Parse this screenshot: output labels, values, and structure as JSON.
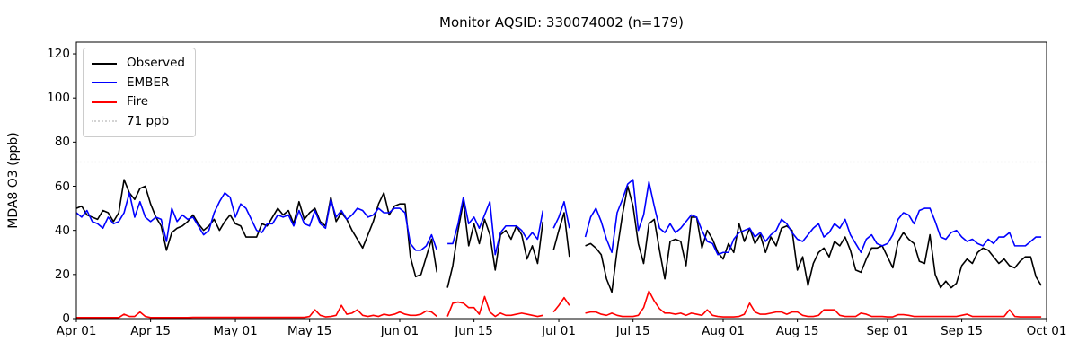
{
  "title": "Monitor AQSID: 330074002 (n=179)",
  "ylabel": "MDA8 O3 (ppb)",
  "legend": {
    "items": [
      {
        "label": "Observed",
        "color": "#000000",
        "dash": "solid"
      },
      {
        "label": "EMBER",
        "color": "#0000ff",
        "dash": "solid"
      },
      {
        "label": "Fire",
        "color": "#ff0000",
        "dash": "solid"
      },
      {
        "label": "71 ppb",
        "color": "#d3d3d3",
        "dash": "dotted"
      }
    ]
  },
  "chart_data": {
    "type": "line",
    "x_unit": "days since Apr 01",
    "xlim": [
      0,
      183
    ],
    "ylim": [
      0,
      125.3
    ],
    "grid": false,
    "legend_position": "upper left",
    "xtick_days": [
      0,
      14,
      30,
      44,
      61,
      75,
      91,
      105,
      122,
      136,
      153,
      167,
      183
    ],
    "xtick_labels": [
      "Apr 01",
      "Apr 15",
      "May 01",
      "May 15",
      "Jun 01",
      "Jun 15",
      "Jul 01",
      "Jul 15",
      "Aug 01",
      "Aug 15",
      "Sep 01",
      "Sep 15",
      "Oct 01"
    ],
    "yticks": [
      0,
      20,
      40,
      60,
      80,
      100,
      120
    ],
    "ytick_labels": [
      "0",
      "20",
      "40",
      "60",
      "80",
      "100",
      "120"
    ],
    "threshold": {
      "value": 71,
      "label": "71 ppb",
      "color": "#d3d3d3",
      "style": "dotted"
    },
    "note": "daily values Apr 01 - Sep 30; null = missing day (n=179)",
    "series": [
      {
        "name": "Observed",
        "color": "#000000",
        "values": [
          50,
          51,
          47,
          46,
          45,
          49,
          48,
          44,
          48,
          63,
          57,
          54,
          59,
          60,
          52,
          46,
          42,
          31,
          39,
          41,
          42,
          44,
          47,
          43,
          40,
          42,
          45,
          40,
          44,
          47,
          43,
          42,
          37,
          37,
          37,
          43,
          42,
          46,
          50,
          47,
          49,
          43,
          53,
          45,
          48,
          50,
          44,
          42,
          55,
          44,
          48,
          45,
          40,
          36,
          32,
          38,
          44,
          52,
          57,
          47,
          51,
          52,
          52,
          28,
          19,
          20,
          28,
          36,
          21,
          null,
          14,
          24,
          40,
          53,
          33,
          43,
          34,
          45,
          38,
          22,
          38,
          40,
          36,
          42,
          38,
          27,
          33,
          25,
          44,
          null,
          31,
          40,
          48,
          28,
          null,
          null,
          33,
          34,
          32,
          29,
          18,
          12,
          31,
          47,
          60,
          51,
          34,
          25,
          43,
          45,
          31,
          18,
          35,
          36,
          35,
          24,
          46,
          46,
          32,
          40,
          36,
          30,
          27,
          34,
          30,
          43,
          35,
          41,
          34,
          38,
          30,
          37,
          33,
          41,
          42,
          40,
          22,
          28,
          15,
          25,
          30,
          32,
          28,
          35,
          33,
          37,
          31,
          22,
          21,
          27,
          32,
          32,
          33,
          28,
          23,
          35,
          39,
          36,
          34,
          26,
          25,
          38,
          20,
          14,
          17,
          14,
          16,
          24,
          27,
          25,
          30,
          32,
          31,
          28,
          25,
          27,
          24,
          23,
          26,
          28,
          28,
          19,
          15
        ]
      },
      {
        "name": "EMBER",
        "color": "#0000ff",
        "values": [
          48,
          46,
          49,
          44,
          43,
          41,
          46,
          43,
          44,
          48,
          57,
          46,
          53,
          46,
          44,
          46,
          45,
          35,
          50,
          44,
          47,
          45,
          46,
          42,
          38,
          40,
          48,
          53,
          57,
          55,
          46,
          52,
          50,
          45,
          40,
          39,
          43,
          43,
          47,
          46,
          47,
          42,
          49,
          43,
          42,
          49,
          43,
          41,
          54,
          46,
          49,
          45,
          47,
          50,
          49,
          46,
          47,
          50,
          48,
          48,
          50,
          50,
          48,
          34,
          31,
          31,
          33,
          38,
          31,
          null,
          34,
          34,
          43,
          55,
          43,
          46,
          41,
          47,
          53,
          29,
          39,
          42,
          42,
          42,
          40,
          36,
          39,
          36,
          49,
          null,
          41,
          46,
          53,
          41,
          null,
          null,
          37,
          46,
          50,
          44,
          36,
          30,
          48,
          54,
          61,
          63,
          40,
          47,
          62,
          51,
          41,
          39,
          43,
          39,
          41,
          44,
          47,
          46,
          40,
          35,
          34,
          29,
          30,
          30,
          36,
          39,
          40,
          41,
          37,
          39,
          35,
          38,
          40,
          45,
          43,
          39,
          36,
          35,
          38,
          41,
          43,
          37,
          39,
          43,
          41,
          45,
          38,
          34,
          30,
          36,
          38,
          34,
          33,
          34,
          38,
          45,
          48,
          47,
          43,
          49,
          50,
          50,
          44,
          37,
          36,
          39,
          40,
          37,
          35,
          36,
          34,
          33,
          36,
          34,
          37,
          37,
          39,
          33,
          33,
          33,
          35,
          37,
          37
        ]
      },
      {
        "name": "Fire",
        "color": "#ff0000",
        "values": [
          0.5,
          0.5,
          0.5,
          0.5,
          0.5,
          0.5,
          0.5,
          0.5,
          0.5,
          2,
          1,
          1,
          3,
          1,
          0.5,
          0.5,
          0.5,
          0.5,
          0.5,
          0.5,
          0.5,
          0.5,
          0.6,
          0.6,
          0.6,
          0.6,
          0.6,
          0.6,
          0.6,
          0.6,
          0.6,
          0.6,
          0.6,
          0.6,
          0.6,
          0.6,
          0.6,
          0.6,
          0.6,
          0.6,
          0.6,
          0.6,
          0.6,
          0.6,
          1,
          4,
          1.5,
          0.8,
          1,
          1.5,
          6,
          2,
          2.5,
          4,
          1.5,
          1,
          1.5,
          1,
          2,
          1.5,
          2,
          3,
          2,
          1.5,
          1.5,
          2,
          3.5,
          3,
          1,
          null,
          1,
          7,
          7.5,
          7,
          5,
          5,
          2,
          10,
          3,
          1,
          2.5,
          1.5,
          1.5,
          2,
          2.5,
          2,
          1.5,
          1,
          1.5,
          null,
          3,
          6,
          9.5,
          6,
          null,
          null,
          2.5,
          3,
          3,
          2,
          1.5,
          2.5,
          1.5,
          1,
          1,
          1,
          1.5,
          5,
          12.5,
          8,
          4.5,
          2.5,
          2.5,
          2,
          2.5,
          1.5,
          2.5,
          2,
          1.5,
          4,
          1.5,
          1,
          0.8,
          0.8,
          0.8,
          1,
          2,
          7,
          3,
          2,
          2,
          2.5,
          3,
          3,
          2,
          3,
          3,
          1.5,
          1,
          1,
          1.5,
          4,
          4,
          4,
          1.5,
          1,
          1,
          1,
          2.5,
          2,
          1,
          1,
          1,
          0.8,
          0.8,
          1.8,
          1.8,
          1.5,
          1,
          1,
          1,
          1,
          1,
          1,
          1,
          1,
          1,
          1.5,
          2,
          1,
          1,
          1,
          1,
          1,
          1,
          1,
          4,
          1,
          0.8,
          0.8,
          0.8,
          0.8,
          0.8
        ]
      }
    ]
  }
}
